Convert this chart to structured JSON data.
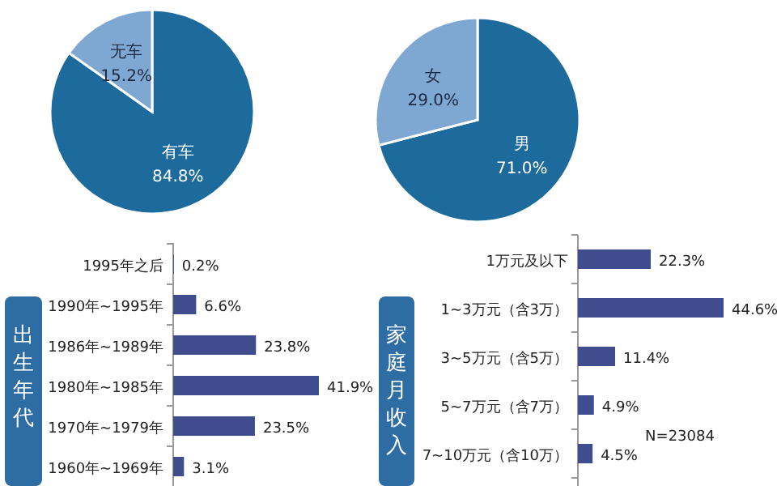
{
  "chart_data": [
    {
      "type": "pie",
      "categories": [
        "有车",
        "无车"
      ],
      "values": [
        84.8,
        15.2
      ],
      "colors": [
        "#1d6a9c",
        "#7ea7d2"
      ],
      "value_labels": [
        "84.8%",
        "15.2%"
      ]
    },
    {
      "type": "pie",
      "categories": [
        "男",
        "女"
      ],
      "values": [
        71.0,
        29.0
      ],
      "colors": [
        "#1d6a9c",
        "#7ea7d2"
      ],
      "value_labels": [
        "71.0%",
        "29.0%"
      ]
    },
    {
      "type": "bar",
      "orientation": "horizontal",
      "ylabel": "出生年代",
      "categories": [
        "1995年之后",
        "1990年~1995年",
        "1986年~1989年",
        "1980年~1985年",
        "1970年~1979年",
        "1960年~1969年"
      ],
      "values": [
        0.2,
        6.6,
        23.8,
        41.9,
        23.5,
        3.1
      ],
      "color": "#3f4d8f",
      "value_labels": [
        "0.2%",
        "6.6%",
        "23.8%",
        "41.9%",
        "23.5%",
        "3.1%"
      ]
    },
    {
      "type": "bar",
      "orientation": "horizontal",
      "ylabel": "家庭月收入",
      "categories": [
        "1万元及以下",
        "1~3万元（含3万）",
        "3~5万元（含5万）",
        "5~7万元（含7万）",
        "7~10万元（含10万）"
      ],
      "values": [
        22.3,
        44.6,
        11.4,
        4.9,
        4.5
      ],
      "color": "#3f4d8f",
      "value_labels": [
        "22.3%",
        "44.6%",
        "11.4%",
        "4.9%",
        "4.5%"
      ],
      "annotations": [
        "N=23084"
      ]
    }
  ]
}
